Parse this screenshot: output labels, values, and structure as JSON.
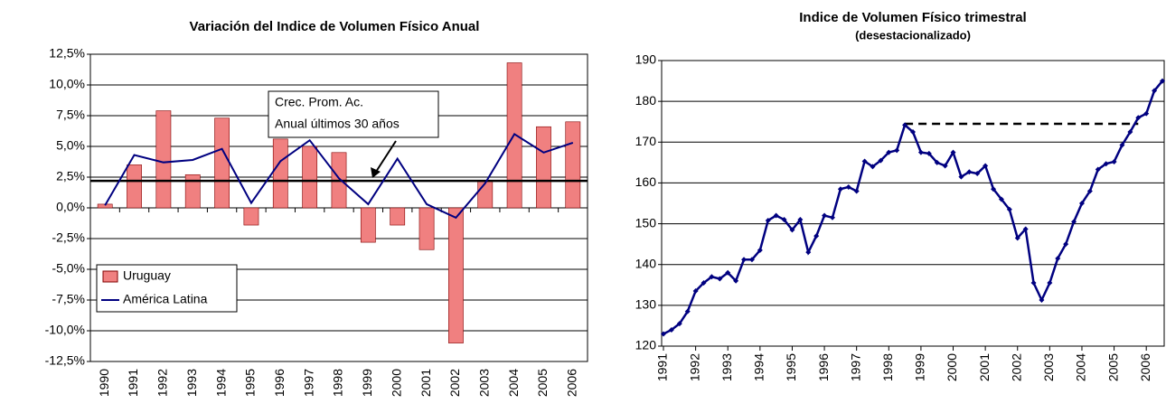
{
  "chart_data": [
    {
      "type": "bar_line",
      "title": "Variación del Indice de Volumen Físico Anual",
      "categories": [
        "1990",
        "1991",
        "1992",
        "1993",
        "1994",
        "1995",
        "1996",
        "1997",
        "1998",
        "1999",
        "2000",
        "2001",
        "2002",
        "2003",
        "2004",
        "2005",
        "2006"
      ],
      "series": [
        {
          "name": "Uruguay",
          "color": "#f08080",
          "kind": "bar",
          "values": [
            0.3,
            3.5,
            7.9,
            2.7,
            7.3,
            -1.4,
            5.6,
            5.0,
            4.5,
            -2.8,
            -1.4,
            -3.4,
            -11.0,
            2.2,
            11.8,
            6.6,
            7.0
          ]
        },
        {
          "name": "América Latina",
          "color": "#000080",
          "kind": "line",
          "values": [
            0.2,
            4.3,
            3.7,
            3.9,
            4.8,
            0.4,
            3.8,
            5.5,
            2.4,
            0.3,
            4.0,
            0.3,
            -0.8,
            2.0,
            6.0,
            4.5,
            5.3
          ]
        }
      ],
      "ylim": [
        -12.5,
        12.5
      ],
      "yticks": [
        {
          "value": 12.5,
          "label": "12,5%"
        },
        {
          "value": 10,
          "label": "10,0%"
        },
        {
          "value": 7.5,
          "label": "7,5%"
        },
        {
          "value": 5,
          "label": "5,0%"
        },
        {
          "value": 2.5,
          "label": "2,5%"
        },
        {
          "value": 0,
          "label": "0,0%"
        },
        {
          "value": -2.5,
          "label": "-2,5%"
        },
        {
          "value": -5,
          "label": "-5,0%"
        },
        {
          "value": -7.5,
          "label": "-7,5%"
        },
        {
          "value": -10,
          "label": "-10,0%"
        },
        {
          "value": -12.5,
          "label": "-12,5%"
        }
      ],
      "grid": true,
      "legend": "lower left",
      "reference_line": 2.2,
      "annotation": [
        "Crec. Prom. Ac.",
        "Anual últimos 30 años"
      ]
    },
    {
      "type": "line",
      "title": "Indice de Volumen Físico trimestral",
      "subtitle": "(desestacionalizado)",
      "categories": [
        "1991",
        null,
        null,
        null,
        "1992",
        null,
        null,
        null,
        "1993",
        null,
        null,
        null,
        "1994",
        null,
        null,
        null,
        "1995",
        null,
        null,
        null,
        "1996",
        null,
        null,
        null,
        "1997",
        null,
        null,
        null,
        "1998",
        null,
        null,
        null,
        "1999",
        null,
        null,
        null,
        "2000",
        null,
        null,
        null,
        "2001",
        null,
        null,
        null,
        "2002",
        null,
        null,
        null,
        "2003",
        null,
        null,
        null,
        "2004",
        null,
        null,
        null,
        "2005",
        null,
        null,
        null,
        "2006",
        null,
        null
      ],
      "values": [
        123,
        124,
        125.5,
        128.5,
        133.5,
        135.5,
        137,
        136.5,
        138,
        136,
        141.2,
        141.2,
        143.5,
        150.8,
        152,
        151,
        148.5,
        151,
        143,
        147,
        152,
        151.5,
        158.5,
        159,
        158,
        165.3,
        164,
        165.5,
        167.5,
        168,
        174.2,
        172.5,
        167.5,
        167.2,
        165,
        164.2,
        167.5,
        161.5,
        162.7,
        162.3,
        164.2,
        158.5,
        156,
        153.5,
        146.5,
        148.7,
        135.5,
        131.3,
        135.5,
        141.5,
        145,
        150.5,
        155,
        158,
        163.3,
        164.7,
        165.2,
        169.3,
        172.5,
        176,
        177,
        182.6,
        185
      ],
      "color": "#000080",
      "ylim": [
        120,
        190
      ],
      "yticks": [
        120,
        130,
        140,
        150,
        160,
        170,
        180,
        190
      ],
      "grid": true,
      "reference_line": 174.5
    }
  ]
}
